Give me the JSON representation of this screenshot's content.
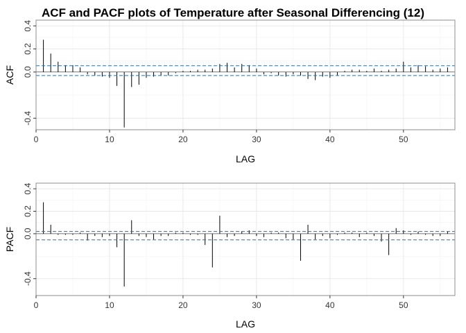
{
  "chart_data": {
    "type": "bar",
    "title": "ACF and PACF plots of Temperature after Seasonal Differencing (12)",
    "xlabel": "LAG",
    "xlim": [
      0,
      57
    ],
    "xticks": [
      0,
      10,
      20,
      30,
      40,
      50
    ],
    "grid": true,
    "panels": [
      {
        "name": "acf",
        "ylabel": "ACF",
        "ylim": [
          -0.5,
          0.45
        ],
        "yticks": [
          -0.4,
          0.0,
          0.2,
          0.4
        ],
        "ytick_labels": [
          "-0.4",
          "0.0",
          "0.2",
          "0.4"
        ],
        "ci": [
          0.055,
          -0.03
        ],
        "lags": [
          1,
          2,
          3,
          4,
          5,
          6,
          7,
          8,
          9,
          10,
          11,
          12,
          13,
          14,
          15,
          16,
          17,
          18,
          19,
          20,
          21,
          22,
          23,
          24,
          25,
          26,
          27,
          28,
          29,
          30,
          31,
          32,
          33,
          34,
          35,
          36,
          37,
          38,
          39,
          40,
          41,
          42,
          43,
          44,
          45,
          46,
          47,
          48,
          49,
          50,
          51,
          52,
          53,
          54,
          55,
          56
        ],
        "values": [
          0.28,
          0.16,
          0.09,
          0.06,
          0.06,
          0.04,
          -0.02,
          -0.03,
          -0.04,
          -0.05,
          -0.12,
          -0.48,
          -0.13,
          -0.11,
          -0.05,
          -0.04,
          -0.03,
          -0.03,
          -0.01,
          0.01,
          0.01,
          0.02,
          0.02,
          0.03,
          0.07,
          0.08,
          0.04,
          0.07,
          0.06,
          0.03,
          -0.02,
          -0.01,
          -0.03,
          -0.04,
          -0.02,
          -0.03,
          -0.06,
          -0.07,
          -0.04,
          -0.05,
          -0.03,
          0.01,
          0.02,
          0.02,
          0.01,
          0.03,
          0.01,
          0.02,
          0.03,
          0.09,
          0.04,
          0.06,
          0.05,
          0.02,
          0.03,
          0.04
        ]
      },
      {
        "name": "pacf",
        "ylabel": "PACF",
        "ylim": [
          -0.55,
          0.45
        ],
        "yticks": [
          -0.4,
          0.0,
          0.2,
          0.4
        ],
        "ytick_labels": [
          "-0.4",
          "0.0",
          "0.2",
          "0.4"
        ],
        "ci": [
          0.02,
          -0.055
        ],
        "lags": [
          1,
          2,
          3,
          4,
          5,
          6,
          7,
          8,
          9,
          10,
          11,
          12,
          13,
          14,
          15,
          16,
          17,
          18,
          19,
          20,
          21,
          22,
          23,
          24,
          25,
          26,
          27,
          28,
          29,
          30,
          31,
          32,
          33,
          34,
          35,
          36,
          37,
          38,
          39,
          40,
          41,
          42,
          43,
          44,
          45,
          46,
          47,
          48,
          49,
          50,
          51,
          52,
          53,
          54,
          55,
          56
        ],
        "values": [
          0.28,
          0.08,
          -0.01,
          -0.01,
          -0.01,
          0.01,
          -0.06,
          -0.02,
          -0.03,
          -0.02,
          -0.12,
          -0.47,
          0.12,
          -0.02,
          -0.03,
          -0.05,
          -0.02,
          -0.02,
          0.01,
          0.01,
          -0.01,
          -0.01,
          -0.1,
          -0.3,
          0.16,
          -0.03,
          -0.02,
          0.02,
          0.03,
          -0.02,
          -0.03,
          0.01,
          0.01,
          -0.04,
          -0.05,
          -0.24,
          0.08,
          -0.05,
          -0.02,
          -0.04,
          -0.01,
          0.01,
          0.01,
          -0.03,
          0.01,
          -0.02,
          -0.07,
          -0.19,
          0.05,
          0.03,
          -0.01,
          0.02,
          -0.01,
          -0.02,
          -0.02,
          0.02
        ]
      }
    ]
  }
}
